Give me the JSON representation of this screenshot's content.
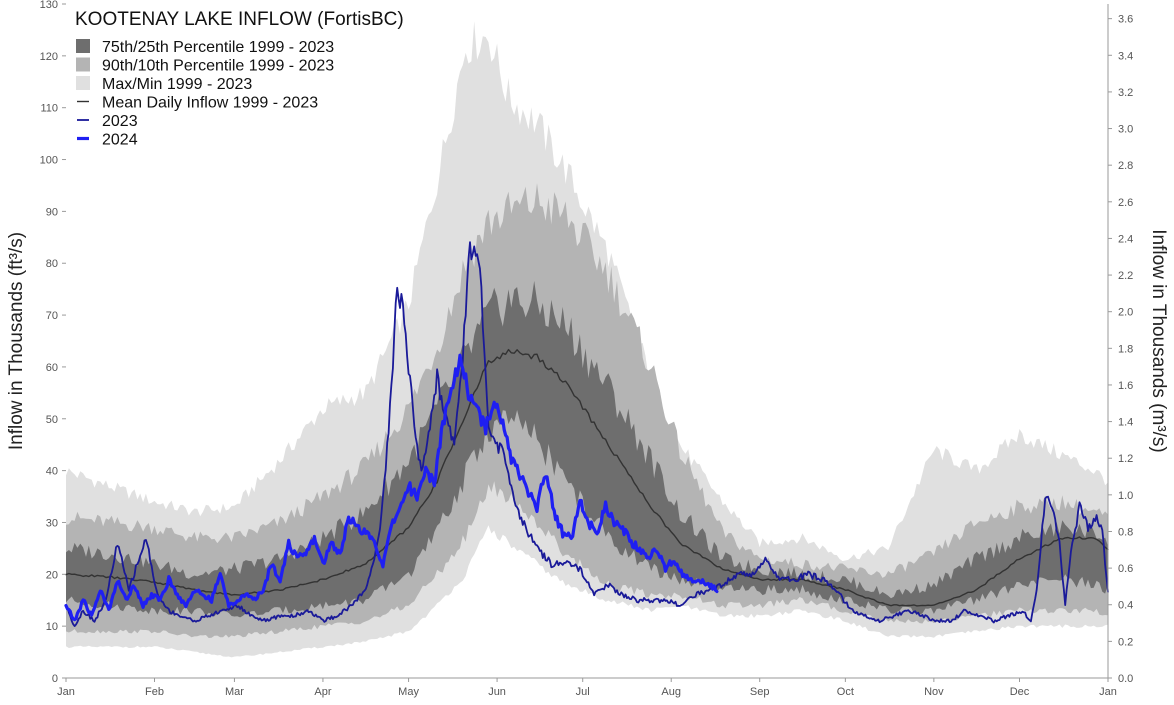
{
  "chart_data": {
    "type": "area",
    "title": "KOOTENAY LAKE INFLOW (FortisBC)",
    "ylabel_left": "Inflow in Thousands (ft³/s)",
    "ylabel_right": "Inflow in Thousands (m³/s)",
    "xlabel": "",
    "x_domain": [
      0,
      365
    ],
    "ylim_left": [
      0,
      130
    ],
    "ylim_right": [
      0,
      3.68
    ],
    "grid": false,
    "legend_position": "top-left",
    "x_ticks": [
      {
        "day": 0,
        "label": "Jan"
      },
      {
        "day": 31,
        "label": "Feb"
      },
      {
        "day": 59,
        "label": "Mar"
      },
      {
        "day": 90,
        "label": "Apr"
      },
      {
        "day": 120,
        "label": "May"
      },
      {
        "day": 151,
        "label": "Jun"
      },
      {
        "day": 181,
        "label": "Jul"
      },
      {
        "day": 212,
        "label": "Aug"
      },
      {
        "day": 243,
        "label": "Sep"
      },
      {
        "day": 273,
        "label": "Oct"
      },
      {
        "day": 304,
        "label": "Nov"
      },
      {
        "day": 334,
        "label": "Dec"
      },
      {
        "day": 365,
        "label": "Jan"
      }
    ],
    "y_ticks_left": [
      "0",
      "10",
      "20",
      "30",
      "40",
      "50",
      "60",
      "70",
      "80",
      "90",
      "100",
      "110",
      "120",
      "130"
    ],
    "y_ticks_right": [
      "0.0",
      "0.2",
      "0.4",
      "0.6",
      "0.8",
      "1.0",
      "1.2",
      "1.4",
      "1.6",
      "1.8",
      "2.0",
      "2.2",
      "2.4",
      "2.6",
      "2.8",
      "3.0",
      "3.2",
      "3.4",
      "3.6"
    ],
    "legend": [
      {
        "label": "75th/25th Percentile 1999 - 2023",
        "kind": "patch",
        "color": "#6e6e6e"
      },
      {
        "label": "90th/10th Percentile 1999 - 2023",
        "kind": "patch",
        "color": "#b4b4b4"
      },
      {
        "label": "Max/Min 1999 - 2023",
        "kind": "patch",
        "color": "#e0e0e0"
      },
      {
        "label": "Mean Daily Inflow 1999 - 2023",
        "kind": "line",
        "color": "#333333",
        "width": 1.4
      },
      {
        "label": "2023",
        "kind": "line",
        "color": "#1a1a99",
        "width": 1.8
      },
      {
        "label": "2024",
        "kind": "line",
        "color": "#1f1ff2",
        "width": 3.2
      }
    ],
    "bands": [
      {
        "name": "Max/Min 1999 - 2023",
        "color": "#e0e0e0",
        "x": [
          0,
          15,
          31,
          45,
          59,
          75,
          90,
          105,
          120,
          130,
          140,
          148,
          155,
          165,
          175,
          190,
          205,
          215,
          230,
          243,
          258,
          273,
          288,
          304,
          319,
          334,
          349,
          360,
          365
        ],
        "upper": [
          40,
          37,
          34,
          32,
          33,
          42,
          52,
          55,
          72,
          96,
          122,
          124,
          112,
          107,
          98,
          82,
          58,
          45,
          34,
          26,
          27,
          23,
          25,
          44,
          40,
          47,
          43,
          40,
          38
        ],
        "lower": [
          6,
          6,
          6,
          5,
          4,
          5,
          6,
          7,
          9,
          14,
          20,
          29,
          26,
          22,
          18,
          15,
          13,
          14,
          12,
          12,
          13,
          11,
          8,
          8,
          9,
          10,
          10,
          10,
          10
        ]
      },
      {
        "name": "90th/10th Percentile 1999 - 2023",
        "color": "#b4b4b4",
        "x": [
          0,
          15,
          31,
          45,
          59,
          75,
          90,
          105,
          120,
          130,
          140,
          148,
          155,
          165,
          175,
          190,
          205,
          215,
          230,
          243,
          258,
          273,
          288,
          304,
          319,
          334,
          349,
          360,
          365
        ],
        "upper": [
          31,
          30,
          29,
          27,
          27,
          30,
          35,
          41,
          52,
          64,
          80,
          88,
          90,
          92,
          89,
          78,
          60,
          44,
          28,
          23,
          22,
          21,
          20,
          24,
          30,
          33,
          34,
          32,
          31
        ],
        "lower": [
          9,
          9,
          9,
          8,
          8,
          9,
          10,
          11,
          14,
          20,
          27,
          37,
          35,
          30,
          24,
          18,
          16,
          16,
          14,
          14,
          15,
          13,
          11,
          11,
          12,
          13,
          13,
          13,
          12
        ]
      },
      {
        "name": "75th/25th Percentile 1999 - 2023",
        "color": "#6e6e6e",
        "x": [
          0,
          15,
          31,
          45,
          59,
          75,
          90,
          105,
          120,
          130,
          140,
          148,
          155,
          165,
          175,
          190,
          205,
          215,
          230,
          243,
          258,
          273,
          288,
          304,
          319,
          334,
          349,
          360,
          365
        ],
        "upper": [
          25,
          24,
          22,
          20,
          21,
          23,
          27,
          32,
          42,
          52,
          62,
          70,
          73,
          72,
          68,
          56,
          42,
          32,
          23,
          21,
          20,
          19,
          16,
          18,
          23,
          27,
          29,
          28,
          27
        ],
        "lower": [
          15,
          14,
          13,
          13,
          12,
          13,
          14,
          15,
          20,
          28,
          39,
          48,
          50,
          46,
          38,
          27,
          21,
          19,
          17,
          17,
          17,
          15,
          13,
          13,
          15,
          18,
          19,
          18,
          17
        ]
      }
    ],
    "series": [
      {
        "name": "Mean Daily Inflow 1999 - 2023",
        "color": "#333333",
        "width": 1.4,
        "x": [
          0,
          15,
          31,
          45,
          59,
          75,
          90,
          105,
          120,
          130,
          140,
          148,
          155,
          165,
          175,
          190,
          205,
          215,
          230,
          243,
          258,
          273,
          288,
          304,
          319,
          334,
          349,
          360,
          365
        ],
        "y": [
          20,
          19.5,
          18.5,
          17,
          16,
          17,
          19,
          22,
          29,
          38,
          51,
          61,
          63,
          62,
          57,
          45,
          33,
          26,
          21,
          19,
          19,
          17,
          14,
          14,
          17,
          23,
          27,
          27,
          25
        ]
      },
      {
        "name": "2023",
        "color": "#1a1a99",
        "width": 1.8,
        "x": [
          0,
          3,
          6,
          10,
          14,
          18,
          22,
          25,
          28,
          32,
          36,
          40,
          45,
          50,
          55,
          60,
          65,
          70,
          75,
          80,
          85,
          90,
          95,
          100,
          105,
          110,
          113,
          116,
          118,
          120,
          123,
          125,
          127,
          130,
          133,
          136,
          139,
          141,
          143,
          145,
          147,
          148,
          150,
          153,
          156,
          160,
          165,
          170,
          175,
          180,
          185,
          190,
          195,
          200,
          205,
          210,
          215,
          220,
          225,
          230,
          235,
          240,
          245,
          250,
          255,
          260,
          265,
          270,
          275,
          280,
          285,
          290,
          295,
          300,
          305,
          310,
          315,
          320,
          325,
          330,
          335,
          338,
          340,
          343,
          346,
          348,
          350,
          352,
          355,
          358,
          361,
          363,
          365
        ],
        "y": [
          14,
          10,
          13,
          11,
          15,
          26,
          17,
          22,
          27,
          16,
          13,
          12,
          11,
          12,
          13,
          14,
          12,
          11,
          12,
          12,
          13,
          11,
          12,
          14,
          17,
          28,
          48,
          75,
          72,
          60,
          44,
          40,
          47,
          58,
          50,
          46,
          62,
          82,
          84,
          78,
          60,
          48,
          45,
          44,
          36,
          30,
          25,
          22,
          22,
          21,
          16,
          18,
          16,
          15,
          15,
          15,
          14,
          16,
          17,
          18,
          20,
          20,
          23,
          19,
          19,
          20,
          19,
          17,
          13,
          12,
          11,
          12,
          13,
          12,
          11,
          11,
          13,
          12,
          11,
          12,
          13,
          11,
          17,
          35,
          32,
          26,
          14,
          24,
          33,
          29,
          31,
          28,
          17
        ]
      },
      {
        "name": "2024",
        "color": "#1f1ff2",
        "width": 3.2,
        "x": [
          0,
          3,
          6,
          9,
          12,
          15,
          18,
          21,
          24,
          27,
          30,
          33,
          36,
          39,
          42,
          45,
          48,
          51,
          54,
          57,
          60,
          63,
          66,
          69,
          72,
          75,
          78,
          81,
          84,
          87,
          90,
          93,
          96,
          99,
          102,
          105,
          108,
          111,
          114,
          117,
          120,
          123,
          126,
          129,
          132,
          135,
          138,
          141,
          144,
          147,
          150,
          153,
          156,
          159,
          162,
          165,
          168,
          171,
          174,
          177,
          180,
          183,
          186,
          189,
          192,
          195,
          198,
          201,
          204,
          207,
          210,
          213,
          216,
          219,
          222,
          225,
          228
        ],
        "y": [
          14,
          11,
          15,
          12,
          17,
          13,
          19,
          15,
          18,
          14,
          16,
          15,
          19,
          16,
          14,
          17,
          16,
          15,
          20,
          14,
          15,
          16,
          15,
          17,
          22,
          19,
          26,
          23,
          24,
          27,
          22,
          26,
          24,
          31,
          29,
          28,
          26,
          22,
          29,
          33,
          37,
          35,
          40,
          38,
          49,
          56,
          62,
          55,
          52,
          48,
          54,
          50,
          42,
          39,
          36,
          33,
          40,
          32,
          28,
          27,
          34,
          30,
          28,
          33,
          30,
          29,
          26,
          25,
          23,
          25,
          21,
          23,
          20,
          19,
          19,
          18,
          17
        ]
      }
    ]
  }
}
